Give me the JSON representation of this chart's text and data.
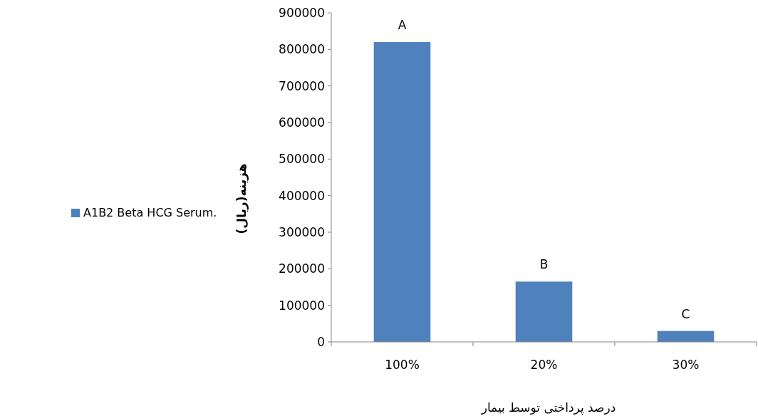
{
  "chart_data": {
    "type": "bar",
    "xlabel": "درصد پرداختی توسط بیمار",
    "ylabel": "هزینه(ریال)",
    "categories": [
      "100%",
      "20%",
      "30%"
    ],
    "series": [
      {
        "name": "A1B2 Beta HCG Serum.",
        "color": "#4f81bd",
        "values": [
          820000,
          165000,
          30000
        ]
      }
    ],
    "ylim": [
      0,
      900000
    ],
    "yticks": [
      0,
      100000,
      200000,
      300000,
      400000,
      500000,
      600000,
      700000,
      800000,
      900000
    ],
    "annotations": [
      {
        "text": "A",
        "x": "100%",
        "y": 820000
      },
      {
        "text": "B",
        "x": "20%",
        "y": 165000
      },
      {
        "text": "C",
        "x": "30%",
        "y": 30000
      }
    ],
    "grid": false,
    "legend": "left"
  }
}
